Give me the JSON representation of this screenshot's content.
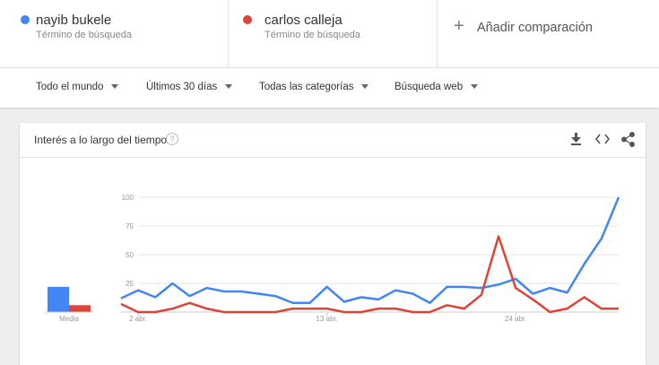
{
  "terms": [
    {
      "subtitle": "Término de búsqueda"
    },
    {
      "subtitle": "Término de búsqueda"
    }
  ],
  "add_comparison": "Añadir comparación",
  "filters": [
    "Todo el mundo",
    "Últimos 30 días",
    "Todas las categorías",
    "Búsqueda web"
  ],
  "card": {
    "title": "Interés a lo largo del tiempo"
  },
  "chart_data": {
    "type": "line",
    "categories": [
      null,
      "2 abr.",
      null,
      null,
      null,
      null,
      null,
      null,
      null,
      null,
      null,
      null,
      "13 abr.",
      null,
      null,
      null,
      null,
      null,
      null,
      null,
      null,
      null,
      null,
      "24 abr.",
      null,
      null,
      null,
      null,
      null,
      null
    ],
    "series": [
      {
        "name": "nayib bukele",
        "color": "#4285f4",
        "values": [
          12,
          19,
          13,
          25,
          14,
          21,
          18,
          18,
          16,
          14,
          8,
          8,
          22,
          9,
          13,
          11,
          19,
          16,
          8,
          22,
          22,
          21,
          24,
          29,
          16,
          21,
          17,
          42,
          64,
          100
        ]
      },
      {
        "name": "carlos calleja",
        "color": "#db4437",
        "values": [
          7,
          0,
          0,
          3,
          8,
          3,
          0,
          0,
          0,
          0,
          3,
          3,
          3,
          0,
          0,
          3,
          3,
          0,
          0,
          6,
          3,
          15,
          66,
          21,
          11,
          0,
          3,
          13,
          3,
          3
        ]
      }
    ],
    "averages": {
      "label": "Media",
      "values": [
        22,
        6
      ]
    },
    "ylim": [
      0,
      100
    ],
    "yticks": [
      25,
      50,
      75,
      100
    ],
    "grid": true
  }
}
